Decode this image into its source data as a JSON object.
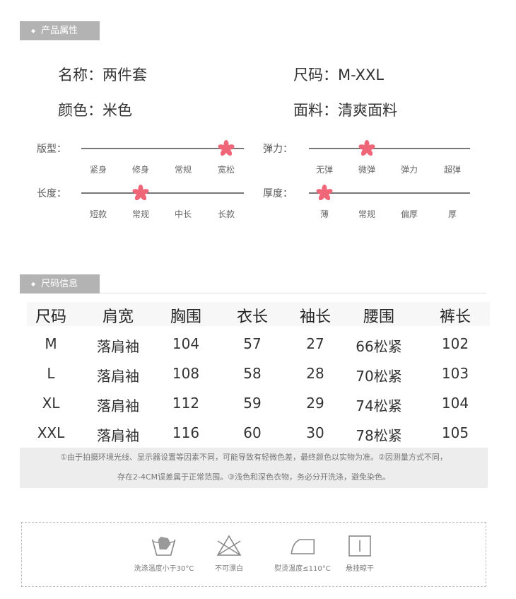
{
  "product_section": {
    "title": "产品属性"
  },
  "attributes": [
    {
      "label": "名称：",
      "value": "两件套"
    },
    {
      "label": "尺码：",
      "value": "M-XXL"
    },
    {
      "label": "颜色：",
      "value": "米色"
    },
    {
      "label": "面料：",
      "value": "清爽面料"
    }
  ],
  "sliders": [
    {
      "label": "版型：",
      "options": [
        "紧身",
        "修身",
        "常规",
        "宽松"
      ],
      "selected_index": 3
    },
    {
      "label": "弹力：",
      "options": [
        "无弹",
        "微弹",
        "弹力",
        "超弹"
      ],
      "selected_index": 1
    },
    {
      "label": "长度：",
      "options": [
        "短款",
        "常规",
        "中长",
        "长款"
      ],
      "selected_index": 1
    },
    {
      "label": "厚度：",
      "options": [
        "薄",
        "常规",
        "偏厚",
        "厚"
      ],
      "selected_index": 0
    }
  ],
  "accent_color": "#ee6677",
  "size_section": {
    "title": "尺码信息"
  },
  "size_table": {
    "headers": [
      "尺码",
      "肩宽",
      "胸围",
      "衣长",
      "袖长",
      "腰围",
      "裤长"
    ],
    "rows": [
      [
        "M",
        "落肩袖",
        "104",
        "57",
        "27",
        "66松紧",
        "102"
      ],
      [
        "L",
        "落肩袖",
        "108",
        "58",
        "28",
        "70松紧",
        "103"
      ],
      [
        "XL",
        "落肩袖",
        "112",
        "59",
        "29",
        "74松紧",
        "104"
      ],
      [
        "XXL",
        "落肩袖",
        "116",
        "60",
        "30",
        "78松紧",
        "105"
      ]
    ]
  },
  "note": {
    "line1": "①由于拍摄环境光线、显示器设置等因素不同，可能导致有轻微色差，最终颜色以实物为准。②因测量方式不同，",
    "line2": "存在2-4CM误差属于正常范围。③浅色和深色衣物，务必分开洗涤，避免染色。"
  },
  "care": [
    {
      "icon": "hand-wash-icon",
      "label": "洗涤温度小于30°C"
    },
    {
      "icon": "no-bleach-icon",
      "label": "不可漂白"
    },
    {
      "icon": "iron-icon",
      "label": "熨烫温度≤110°C"
    },
    {
      "icon": "hang-dry-icon",
      "label": "悬挂晾干"
    }
  ]
}
